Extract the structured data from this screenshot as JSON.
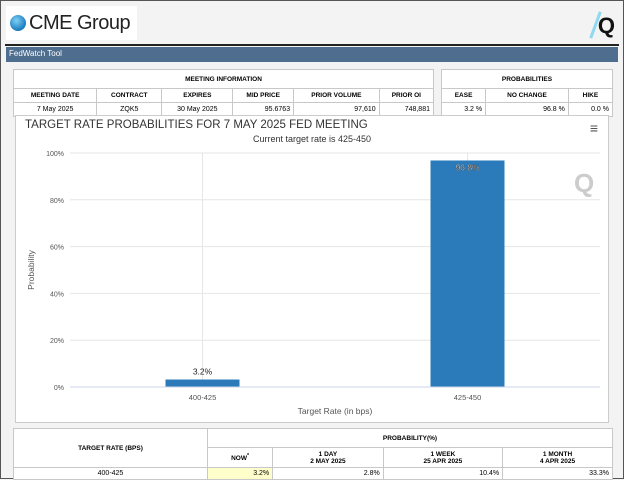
{
  "header": {
    "logo_text": "CME Group",
    "tool_title": "FedWatch Tool"
  },
  "meeting_info": {
    "title": "MEETING INFORMATION",
    "headers": [
      "MEETING DATE",
      "CONTRACT",
      "EXPIRES",
      "MID PRICE",
      "PRIOR VOLUME",
      "PRIOR OI"
    ],
    "values": [
      "7 May 2025",
      "ZQK5",
      "30 May 2025",
      "95.6763",
      "97,610",
      "748,881"
    ]
  },
  "probabilities": {
    "title": "PROBABILITIES",
    "headers": [
      "EASE",
      "NO CHANGE",
      "HIKE"
    ],
    "values": [
      "3.2 %",
      "96.8 %",
      "0.0 %"
    ]
  },
  "chart_data": {
    "type": "bar",
    "title": "TARGET RATE PROBABILITIES FOR 7 MAY 2025 FED MEETING",
    "subtitle": "Current target rate is 425-450",
    "categories": [
      "400-425",
      "425-450"
    ],
    "values": [
      3.2,
      96.8
    ],
    "data_labels": [
      "3.2%",
      "96.8%"
    ],
    "xlabel": "Target Rate (in bps)",
    "ylabel": "Probability",
    "ylim": [
      0,
      100
    ],
    "yticks": [
      "0%",
      "20%",
      "40%",
      "60%",
      "80%",
      "100%"
    ],
    "grid": true,
    "bar_color": "#2b7bba"
  },
  "bottom_table": {
    "rate_header": "TARGET RATE (BPS)",
    "prob_header": "PROBABILITY(%)",
    "cols": [
      {
        "l1": "NOW",
        "l2": "*"
      },
      {
        "l1": "1 DAY",
        "l2": "2 MAY 2025"
      },
      {
        "l1": "1 WEEK",
        "l2": "25 APR 2025"
      },
      {
        "l1": "1 MONTH",
        "l2": "4 APR 2025"
      }
    ],
    "rows": [
      {
        "rate": "400-425",
        "values": [
          "3.2%",
          "2.8%",
          "10.4%",
          "33.3%"
        ]
      }
    ]
  }
}
